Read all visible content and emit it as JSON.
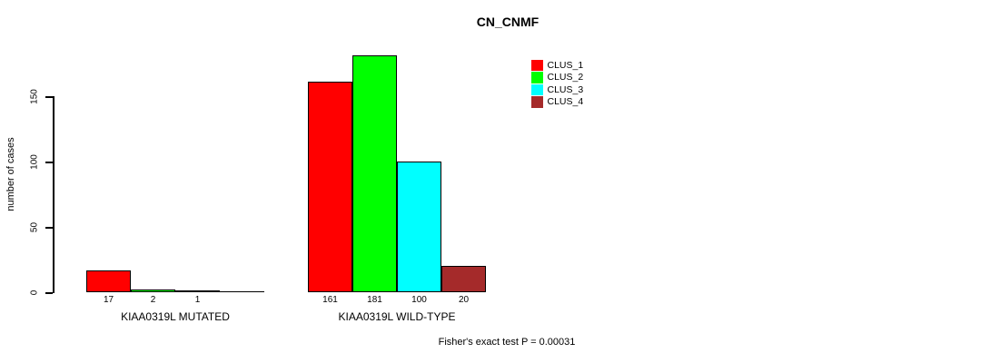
{
  "chart_data": {
    "type": "bar",
    "title": "CN_CNMF",
    "ylabel": "number of cases",
    "xlabel": "",
    "yticks": [
      0,
      50,
      100,
      150
    ],
    "ylim": [
      0,
      185
    ],
    "grid": false,
    "legend_position": "top-right",
    "categories": [
      "KIAA0319L MUTATED",
      "KIAA0319L WILD-TYPE"
    ],
    "series": [
      {
        "name": "CLUS_1",
        "color": "#ff0000",
        "values": [
          17,
          161
        ]
      },
      {
        "name": "CLUS_2",
        "color": "#00ff00",
        "values": [
          2,
          181
        ]
      },
      {
        "name": "CLUS_3",
        "color": "#00ffff",
        "values": [
          1,
          100
        ]
      },
      {
        "name": "CLUS_4",
        "color": "#a52a2a",
        "values": [
          0,
          20
        ]
      }
    ],
    "bar_value_labels": [
      [
        "17",
        "2",
        "1",
        ""
      ],
      [
        "161",
        "181",
        "100",
        "20"
      ]
    ],
    "footnote": "Fisher's exact test P = 0.00031"
  }
}
